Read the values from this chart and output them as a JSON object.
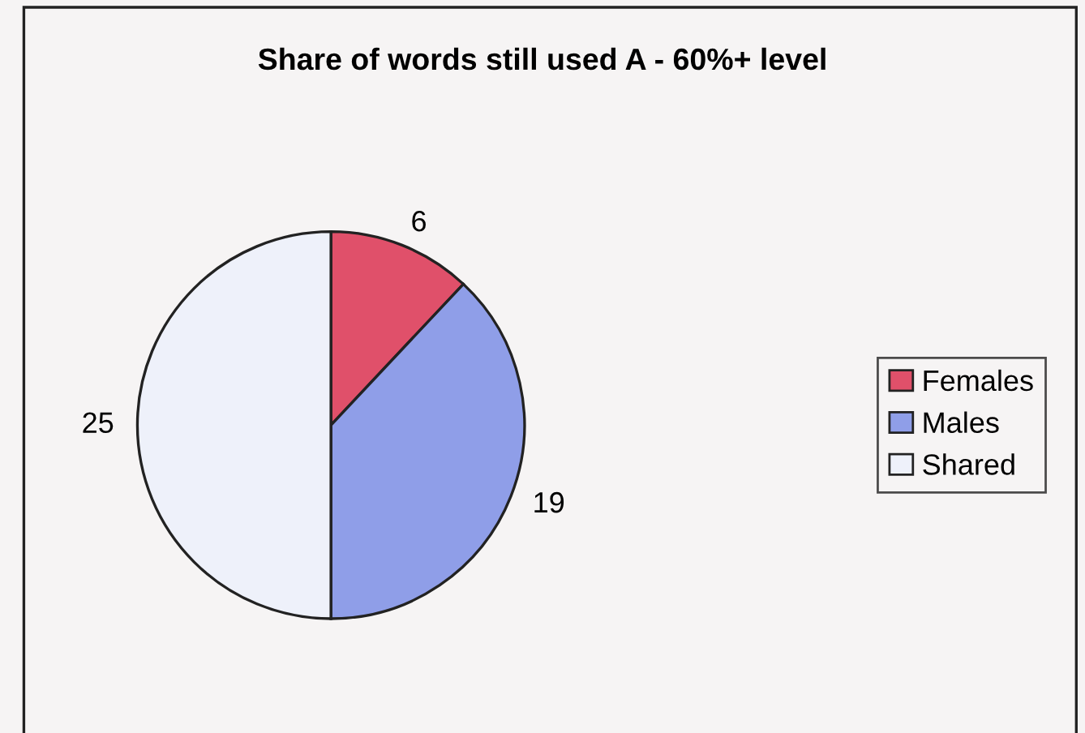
{
  "chart_data": {
    "type": "pie",
    "title": "Share of words still used A - 60%+ level",
    "categories": [
      "Females",
      "Males",
      "Shared"
    ],
    "values": [
      6,
      19,
      25
    ],
    "colors": [
      "#e0506a",
      "#8f9ee8",
      "#eef1fa"
    ],
    "data_labels": true,
    "legend": "right"
  }
}
